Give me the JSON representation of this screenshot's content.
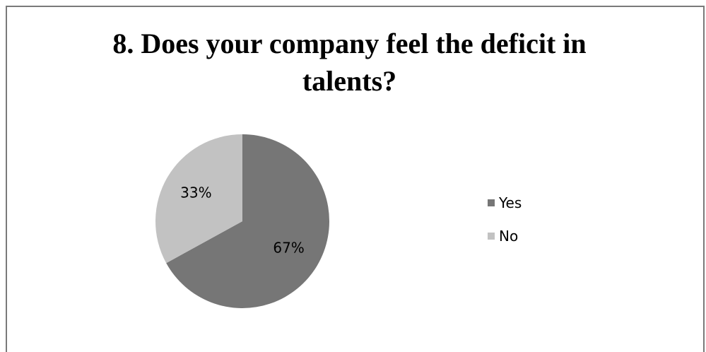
{
  "chart_data": {
    "type": "pie",
    "title_lines": [
      "8. Does your company feel the deficit in",
      "talents?"
    ],
    "slices": [
      {
        "label": "Yes",
        "value": 67,
        "display": "67%",
        "color": "#767676"
      },
      {
        "label": "No",
        "value": 33,
        "display": "33%",
        "color": "#c2c2c2"
      }
    ],
    "legend_position": "right"
  }
}
